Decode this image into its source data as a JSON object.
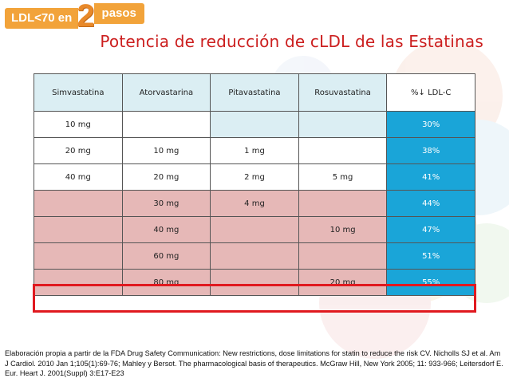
{
  "logo": {
    "left": "LDL<70 en",
    "number": "2",
    "right": "pasos"
  },
  "title": "Potencia de reducción de cLDL de las Estatinas",
  "table": {
    "headers": [
      "Simvastatina",
      "Atorvastarina",
      "Pitavastatina",
      "Rosuvastatina",
      "%↓ LDL-C"
    ],
    "rows": [
      [
        "10 mg",
        "",
        "",
        "",
        "30%"
      ],
      [
        "20 mg",
        "10 mg",
        "1 mg",
        "",
        "38%"
      ],
      [
        "40 mg",
        "20 mg",
        "2 mg",
        "5 mg",
        "41%"
      ],
      [
        "",
        "30 mg",
        "4 mg",
        "",
        "44%"
      ],
      [
        "",
        "40 mg",
        "",
        "10 mg",
        "47%"
      ],
      [
        "",
        "60 mg",
        "",
        "",
        "51%"
      ],
      [
        "",
        "80 mg",
        "",
        "20 mg",
        "55%"
      ]
    ],
    "highlighted_row": 7
  },
  "footnote": "Elaboración propia a partir de la FDA Drug Safety Communication: New restrictions, dose limitations for statin to reduce the risk CV. Nicholls SJ et al. Am J  Cardiol. 2010 Jan 1;105(1):69-76; Mahley y Bersot. The pharmacological basis of therapeutics. McGraw Hill, New York 2005; 11: 933-966; Leitersdorf E. Eur. Heart J. 2001(Suppl) 3:E17-E23",
  "colors": {
    "title": "#cc1f1f",
    "percent_cell": "#1aa5d8",
    "pink_row": "#e6b8b7",
    "header_cell": "#dbeef3",
    "highlight_border": "#e0191f",
    "logo": "#f2a33a"
  }
}
